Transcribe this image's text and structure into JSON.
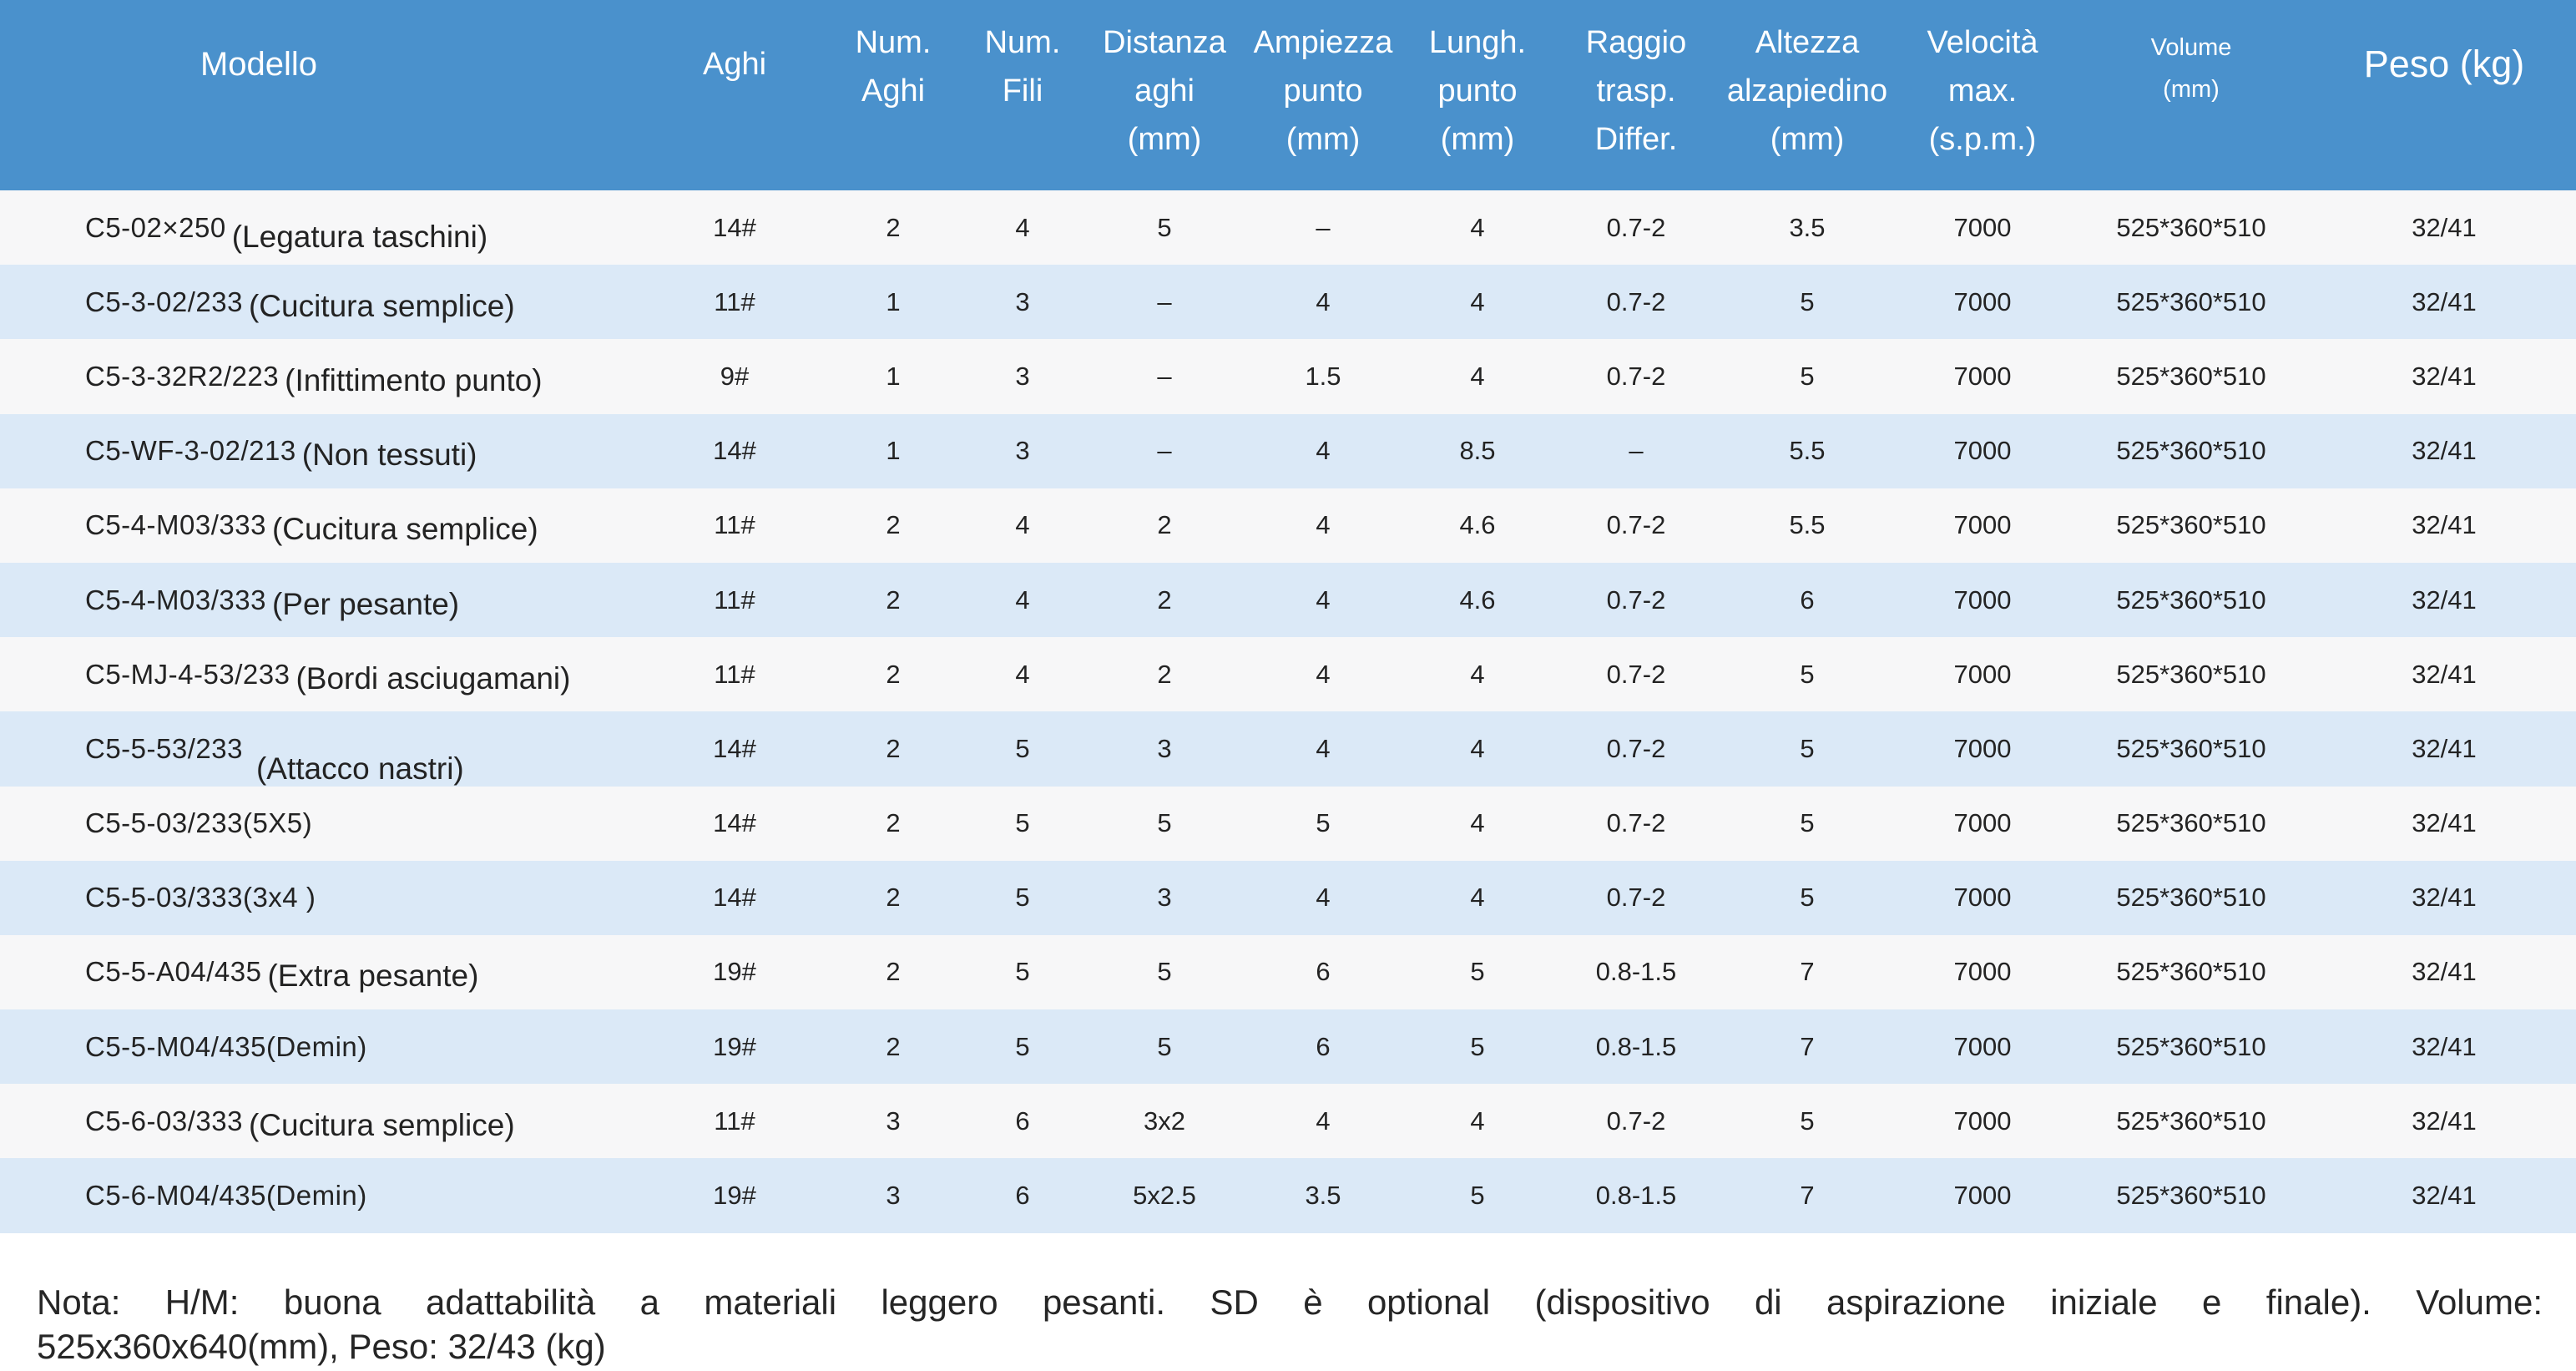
{
  "colors": {
    "header_bg": "#4A91CC",
    "header_text": "#FFFFFF",
    "row_bg": "#F7F7F8",
    "row_alt_bg": "#DBE9F7",
    "body_text": "#232323"
  },
  "table": {
    "headers": [
      {
        "id": "modello",
        "label": "Modello"
      },
      {
        "id": "aghi",
        "label": "Aghi"
      },
      {
        "id": "num-aghi",
        "label": "Num.\nAghi"
      },
      {
        "id": "num-fili",
        "label": "Num.\nFili"
      },
      {
        "id": "distanza-aghi",
        "label": "Distanza\naghi\n(mm)"
      },
      {
        "id": "ampiezza-punto",
        "label": "Ampiezza\npunto\n(mm)"
      },
      {
        "id": "lungh-punto",
        "label": "Lungh.\npunto\n(mm)"
      },
      {
        "id": "raggio-trasp",
        "label": "Raggio\ntrasp.\nDiffer."
      },
      {
        "id": "altezza-alzapiedino",
        "label": "Altezza\nalzapiedino\n(mm)"
      },
      {
        "id": "velocita-max",
        "label": "Velocità\nmax.\n(s.p.m.)"
      },
      {
        "id": "volume",
        "label": "Volume\n(mm)"
      },
      {
        "id": "peso",
        "label": "Peso (kg)"
      }
    ],
    "rows": [
      {
        "model": "C5-02×250",
        "desc": "(Legatura taschini)",
        "aghi": "14#",
        "num_aghi": "2",
        "num_fili": "4",
        "distanza_aghi": "5",
        "ampiezza_punto": "–",
        "lungh_punto": "4",
        "raggio_trasp": "0.7-2",
        "altezza_alzapiedino": "3.5",
        "velocita_max": "7000",
        "volume": "525*360*510",
        "peso": "32/41"
      },
      {
        "model": "C5-3-02/233",
        "desc": "(Cucitura semplice)",
        "aghi": "11#",
        "num_aghi": "1",
        "num_fili": "3",
        "distanza_aghi": "–",
        "ampiezza_punto": "4",
        "lungh_punto": "4",
        "raggio_trasp": "0.7-2",
        "altezza_alzapiedino": "5",
        "velocita_max": "7000",
        "volume": "525*360*510",
        "peso": "32/41"
      },
      {
        "model": "C5-3-32R2/223",
        "desc": "(Infittimento punto)",
        "aghi": "9#",
        "num_aghi": "1",
        "num_fili": "3",
        "distanza_aghi": "–",
        "ampiezza_punto": "1.5",
        "lungh_punto": "4",
        "raggio_trasp": "0.7-2",
        "altezza_alzapiedino": "5",
        "velocita_max": "7000",
        "volume": "525*360*510",
        "peso": "32/41"
      },
      {
        "model": "C5-WF-3-02/213",
        "desc": "(Non tessuti)",
        "aghi": "14#",
        "num_aghi": "1",
        "num_fili": "3",
        "distanza_aghi": "–",
        "ampiezza_punto": "4",
        "lungh_punto": "8.5",
        "raggio_trasp": "–",
        "altezza_alzapiedino": "5.5",
        "velocita_max": "7000",
        "volume": "525*360*510",
        "peso": "32/41"
      },
      {
        "model": "C5-4-M03/333",
        "desc": "(Cucitura semplice)",
        "aghi": "11#",
        "num_aghi": "2",
        "num_fili": "4",
        "distanza_aghi": "2",
        "ampiezza_punto": "4",
        "lungh_punto": "4.6",
        "raggio_trasp": "0.7-2",
        "altezza_alzapiedino": "5.5",
        "velocita_max": "7000",
        "volume": "525*360*510",
        "peso": "32/41"
      },
      {
        "model": "C5-4-M03/333",
        "desc": "(Per pesante)",
        "aghi": "11#",
        "num_aghi": "2",
        "num_fili": "4",
        "distanza_aghi": "2",
        "ampiezza_punto": "4",
        "lungh_punto": "4.6",
        "raggio_trasp": "0.7-2",
        "altezza_alzapiedino": "6",
        "velocita_max": "7000",
        "volume": "525*360*510",
        "peso": "32/41"
      },
      {
        "model": "C5-MJ-4-53/233",
        "desc": "(Bordi asciugamani)",
        "aghi": "11#",
        "num_aghi": "2",
        "num_fili": "4",
        "distanza_aghi": "2",
        "ampiezza_punto": "4",
        "lungh_punto": "4",
        "raggio_trasp": "0.7-2",
        "altezza_alzapiedino": "5",
        "velocita_max": "7000",
        "volume": "525*360*510",
        "peso": "32/41"
      },
      {
        "model": "C5-5-53/233",
        "desc": "(Attacco nastri)",
        "aghi": "14#",
        "num_aghi": "2",
        "num_fili": "5",
        "distanza_aghi": "3",
        "ampiezza_punto": "4",
        "lungh_punto": "4",
        "raggio_trasp": "0.7-2",
        "altezza_alzapiedino": "5",
        "velocita_max": "7000",
        "volume": "525*360*510",
        "peso": "32/41"
      },
      {
        "model": "C5-5-03/233(5X5)",
        "desc": "",
        "aghi": "14#",
        "num_aghi": "2",
        "num_fili": "5",
        "distanza_aghi": "5",
        "ampiezza_punto": "5",
        "lungh_punto": "4",
        "raggio_trasp": "0.7-2",
        "altezza_alzapiedino": "5",
        "velocita_max": "7000",
        "volume": "525*360*510",
        "peso": "32/41"
      },
      {
        "model": "C5-5-03/333(3x4 )",
        "desc": "",
        "aghi": "14#",
        "num_aghi": "2",
        "num_fili": "5",
        "distanza_aghi": "3",
        "ampiezza_punto": "4",
        "lungh_punto": "4",
        "raggio_trasp": "0.7-2",
        "altezza_alzapiedino": "5",
        "velocita_max": "7000",
        "volume": "525*360*510",
        "peso": "32/41"
      },
      {
        "model": "C5-5-A04/435",
        "desc": "(Extra pesante)",
        "aghi": "19#",
        "num_aghi": "2",
        "num_fili": "5",
        "distanza_aghi": "5",
        "ampiezza_punto": "6",
        "lungh_punto": "5",
        "raggio_trasp": "0.8-1.5",
        "altezza_alzapiedino": "7",
        "velocita_max": "7000",
        "volume": "525*360*510",
        "peso": "32/41"
      },
      {
        "model": "C5-5-M04/435(Demin)",
        "desc": "",
        "aghi": "19#",
        "num_aghi": "2",
        "num_fili": "5",
        "distanza_aghi": "5",
        "ampiezza_punto": "6",
        "lungh_punto": "5",
        "raggio_trasp": "0.8-1.5",
        "altezza_alzapiedino": "7",
        "velocita_max": "7000",
        "volume": "525*360*510",
        "peso": "32/41"
      },
      {
        "model": "C5-6-03/333",
        "desc": "(Cucitura semplice)",
        "aghi": "11#",
        "num_aghi": "3",
        "num_fili": "6",
        "distanza_aghi": "3x2",
        "ampiezza_punto": "4",
        "lungh_punto": "4",
        "raggio_trasp": "0.7-2",
        "altezza_alzapiedino": "5",
        "velocita_max": "7000",
        "volume": "525*360*510",
        "peso": "32/41"
      },
      {
        "model": "C5-6-M04/435(Demin)",
        "desc": "",
        "aghi": "19#",
        "num_aghi": "3",
        "num_fili": "6",
        "distanza_aghi": "5x2.5",
        "ampiezza_punto": "3.5",
        "lungh_punto": "5",
        "raggio_trasp": "0.8-1.5",
        "altezza_alzapiedino": "7",
        "velocita_max": "7000",
        "volume": "525*360*510",
        "peso": "32/41"
      }
    ]
  },
  "note": {
    "line1": "Nota: H/M: buona adattabilità a materiali leggero pesanti. SD è optional (dispositivo di aspirazione iniziale e finale). Volume:",
    "line2": "525x360x640(mm), Peso: 32/43 (kg)"
  }
}
